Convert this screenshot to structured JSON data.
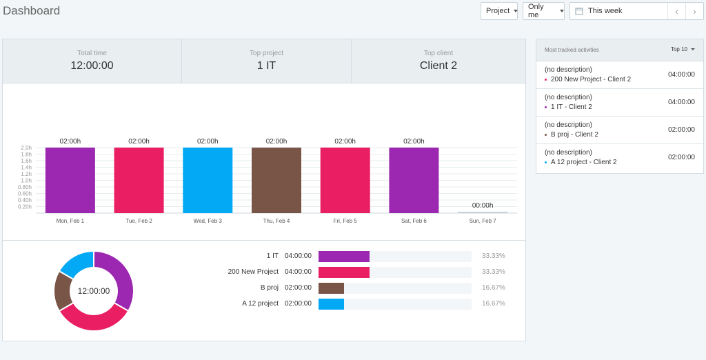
{
  "header": {
    "title": "Dashboard",
    "project_dropdown": "Project",
    "user_dropdown": "Only me",
    "date_range": "This week",
    "prev_icon": "chevron-left-icon",
    "next_icon": "chevron-right-icon"
  },
  "stats": {
    "total_time_label": "Total time",
    "total_time_value": "12:00:00",
    "top_project_label": "Top project",
    "top_project_value": "1 IT",
    "top_client_label": "Top client",
    "top_client_value": "Client 2"
  },
  "chart_data": {
    "type": "bar",
    "categories": [
      "Mon, Feb 1",
      "Tue, Feb 2",
      "Wed, Feb 3",
      "Thu, Feb 4",
      "Fri, Feb 5",
      "Sat, Feb 6",
      "Sun, Feb 7"
    ],
    "values": [
      2.0,
      2.0,
      2.0,
      2.0,
      2.0,
      2.0,
      0
    ],
    "value_labels": [
      "02:00h",
      "02:00h",
      "02:00h",
      "02:00h",
      "02:00h",
      "02:00h",
      "00:00h"
    ],
    "colors": [
      "#9c27b0",
      "#e91e63",
      "#03a9f4",
      "#795548",
      "#e91e63",
      "#9c27b0",
      "#c8d2d8"
    ],
    "yticks": [
      "0.20h",
      "0.40h",
      "0.60h",
      "0.80h",
      "1.0h",
      "1.2h",
      "1.4h",
      "1.6h",
      "1.8h",
      "2.0h"
    ],
    "ylim": [
      0,
      2.0
    ],
    "grid": true
  },
  "donut": {
    "center_label": "12:00:00",
    "slices": [
      {
        "name": "1 IT",
        "value": 33.33,
        "color": "#9c27b0"
      },
      {
        "name": "200 New Project",
        "value": 33.33,
        "color": "#e91e63"
      },
      {
        "name": "B proj",
        "value": 16.67,
        "color": "#795548"
      },
      {
        "name": "A 12 project",
        "value": 16.67,
        "color": "#03a9f4"
      }
    ]
  },
  "projects": [
    {
      "name": "1 IT",
      "time": "04:00:00",
      "percent": "33.33%",
      "fraction": 0.3333,
      "color": "#9c27b0"
    },
    {
      "name": "200 New Project",
      "time": "04:00:00",
      "percent": "33.33%",
      "fraction": 0.3333,
      "color": "#e91e63"
    },
    {
      "name": "B proj",
      "time": "02:00:00",
      "percent": "16.67%",
      "fraction": 0.1667,
      "color": "#795548"
    },
    {
      "name": "A 12 project",
      "time": "02:00:00",
      "percent": "16.67%",
      "fraction": 0.1667,
      "color": "#03a9f4"
    }
  ],
  "activities": {
    "title": "Most tracked activities",
    "filter": "Top 10",
    "items": [
      {
        "description": "(no description)",
        "project": "200 New Project - Client 2",
        "duration": "04:00:00",
        "color": "#e91e63"
      },
      {
        "description": "(no description)",
        "project": "1 IT - Client 2",
        "duration": "04:00:00",
        "color": "#9c27b0"
      },
      {
        "description": "(no description)",
        "project": "B proj - Client 2",
        "duration": "02:00:00",
        "color": "#795548"
      },
      {
        "description": "(no description)",
        "project": "A 12 project - Client 2",
        "duration": "02:00:00",
        "color": "#03a9f4"
      }
    ]
  }
}
